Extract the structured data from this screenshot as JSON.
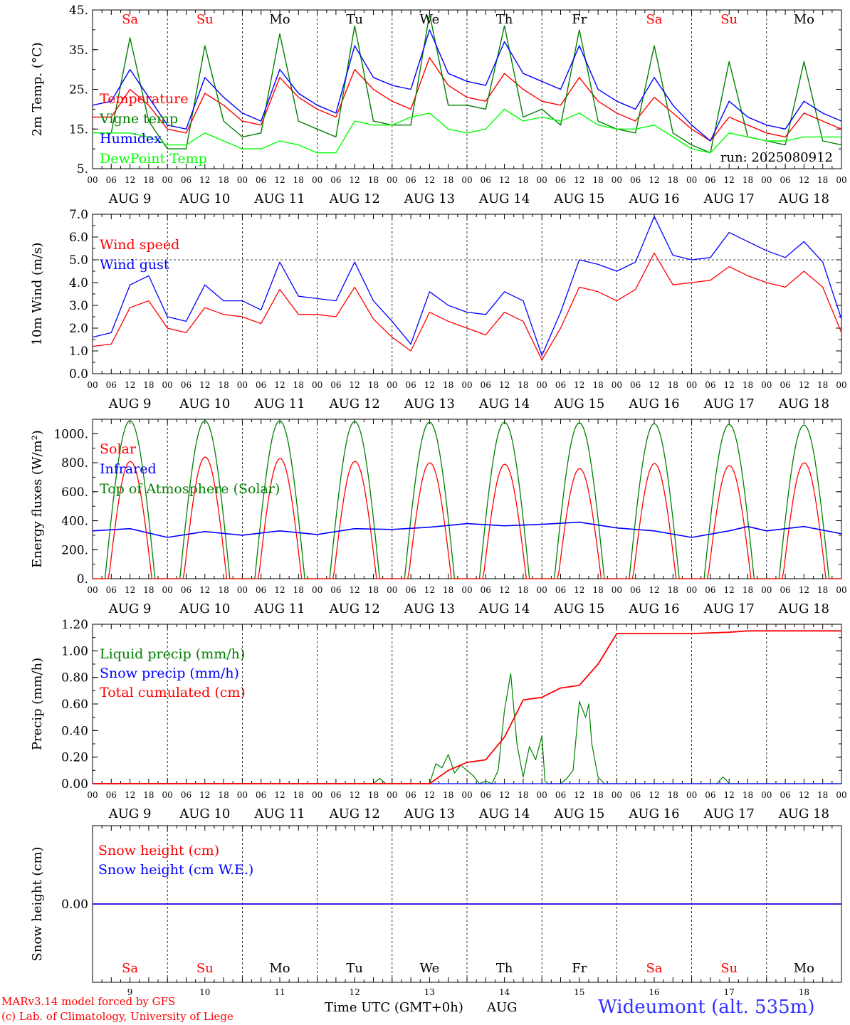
{
  "footer": {
    "model_line": "MARv3.14 model forced by GFS",
    "copyright_line": "(c) Lab. of Climatology, University of Liege",
    "axis_title": "Time UTC (GMT+0h)",
    "month": "AUG",
    "station": "Wideumont (alt. 535m)"
  },
  "colors": {
    "red": "#ff0000",
    "green": "#008000",
    "blue": "#0000ff",
    "lime": "#00ff00",
    "weekend": "#ff0000",
    "weekday": "#000000"
  },
  "chart_data": [
    {
      "type": "line",
      "id": "temp",
      "ylabel": "2m Temp. (°C)",
      "ylim": [
        5,
        45
      ],
      "yticks": [
        5,
        15,
        25,
        35,
        45
      ],
      "ytick_labels": [
        "5.",
        "15.",
        "25.",
        "35.",
        "45."
      ],
      "grid": "vertical dashed at 00 UTC",
      "legend": [
        "Temperature",
        "Vigne temp",
        "Humidex",
        "DewPoint Temp"
      ],
      "legend_placement": "left",
      "annotation": "run: 2025080912",
      "weekdays": [
        "Sa",
        "Su",
        "Mo",
        "Tu",
        "We",
        "Th",
        "Fr",
        "Sa",
        "Su",
        "Mo"
      ],
      "x_hours": [
        0,
        6,
        12,
        18,
        24,
        30,
        36,
        42,
        48,
        54,
        60,
        66,
        72,
        78,
        84,
        90,
        96,
        102,
        108,
        114,
        120,
        126,
        132,
        138,
        144,
        150,
        156,
        162,
        168,
        174,
        180,
        186,
        192,
        198,
        204,
        210,
        216,
        222,
        228,
        234,
        240
      ],
      "series": [
        {
          "name": "Temperature",
          "color": "red",
          "values": [
            18,
            18,
            25,
            21,
            15,
            14,
            24,
            21,
            17,
            16,
            28,
            23,
            20,
            18,
            30,
            25,
            22,
            20,
            33,
            26,
            23,
            22,
            29,
            25,
            22,
            21,
            28,
            22,
            19,
            17,
            23,
            19,
            15,
            12,
            18,
            16,
            14,
            13,
            19,
            17,
            15
          ]
        },
        {
          "name": "Vigne temp",
          "color": "green",
          "values": [
            14,
            14,
            38,
            17,
            10,
            10,
            36,
            17,
            13,
            14,
            39,
            17,
            15,
            13,
            41,
            17,
            16,
            16,
            44,
            21,
            21,
            20,
            41,
            18,
            20,
            16,
            40,
            17,
            15,
            14,
            36,
            14,
            11,
            9,
            32,
            13,
            12,
            11,
            32,
            12,
            11
          ]
        },
        {
          "name": "Humidex",
          "color": "blue",
          "values": [
            21,
            22,
            30,
            23,
            16,
            15,
            28,
            23,
            19,
            17,
            30,
            24,
            21,
            19,
            36,
            28,
            26,
            25,
            40,
            29,
            27,
            26,
            37,
            29,
            27,
            25,
            36,
            25,
            22,
            20,
            28,
            21,
            16,
            12,
            22,
            18,
            16,
            15,
            22,
            19,
            17
          ]
        },
        {
          "name": "DewPoint Temp",
          "color": "lime",
          "values": [
            14,
            14,
            14,
            13,
            11,
            11,
            14,
            12,
            10,
            10,
            12,
            11,
            9,
            9,
            17,
            16,
            16,
            18,
            19,
            15,
            14,
            15,
            20,
            17,
            18,
            17,
            19,
            16,
            15,
            15,
            16,
            13,
            10,
            9,
            14,
            13,
            12,
            12,
            13,
            13,
            13
          ]
        }
      ]
    },
    {
      "type": "line",
      "id": "wind",
      "ylabel": "10m Wind (m/s)",
      "ylim": [
        0,
        7
      ],
      "yticks": [
        0,
        1,
        2,
        3,
        4,
        5,
        6,
        7
      ],
      "ytick_labels": [
        "0.0",
        "1.0",
        "2.0",
        "3.0",
        "4.0",
        "5.0",
        "6.0",
        "7.0"
      ],
      "reference_line": 5,
      "legend": [
        "Wind speed",
        "Wind gust"
      ],
      "legend_placement": "left",
      "x_hours": [
        0,
        6,
        12,
        18,
        24,
        30,
        36,
        42,
        48,
        54,
        60,
        66,
        72,
        78,
        84,
        90,
        96,
        102,
        108,
        114,
        120,
        126,
        132,
        138,
        144,
        150,
        156,
        162,
        168,
        174,
        180,
        186,
        192,
        198,
        204,
        210,
        216,
        222,
        228,
        234,
        240
      ],
      "series": [
        {
          "name": "Wind speed",
          "color": "red",
          "values": [
            1.2,
            1.3,
            2.9,
            3.2,
            2.0,
            1.8,
            2.9,
            2.6,
            2.5,
            2.2,
            3.7,
            2.6,
            2.6,
            2.5,
            3.8,
            2.4,
            1.6,
            1.0,
            2.7,
            2.3,
            2.0,
            1.7,
            2.7,
            2.3,
            0.6,
            2.0,
            3.8,
            3.6,
            3.2,
            3.7,
            5.3,
            3.9,
            4.0,
            4.1,
            4.7,
            4.3,
            4.0,
            3.8,
            4.5,
            3.8,
            1.8
          ]
        },
        {
          "name": "Wind gust",
          "color": "blue",
          "values": [
            1.6,
            1.8,
            3.9,
            4.3,
            2.5,
            2.3,
            3.9,
            3.2,
            3.2,
            2.8,
            4.9,
            3.4,
            3.3,
            3.2,
            4.9,
            3.2,
            2.3,
            1.3,
            3.6,
            3.0,
            2.7,
            2.6,
            3.6,
            3.2,
            0.8,
            2.7,
            5.0,
            4.8,
            4.5,
            4.9,
            6.9,
            5.2,
            5.0,
            5.1,
            6.2,
            5.8,
            5.4,
            5.1,
            5.8,
            4.9,
            2.4
          ]
        }
      ]
    },
    {
      "type": "line",
      "id": "energy",
      "ylabel": "Energy fluxes (W/m²)",
      "ylim": [
        0,
        1100
      ],
      "yticks": [
        0,
        200,
        400,
        600,
        800,
        1000
      ],
      "ytick_labels": [
        "0.",
        "200.",
        "400.",
        "600.",
        "800.",
        "1000."
      ],
      "legend": [
        "Solar",
        "Infrared",
        "Top of Atmosphere (Solar)"
      ],
      "legend_placement": "left",
      "daily_peaks_solar": [
        810,
        840,
        830,
        810,
        800,
        790,
        760,
        795,
        780,
        800
      ],
      "daily_peaks_toa": [
        1090,
        1090,
        1090,
        1085,
        1080,
        1080,
        1075,
        1070,
        1065,
        1060
      ],
      "series": [
        {
          "name": "Solar",
          "color": "red",
          "description": "daily bell from ~05 to ~19 UTC"
        },
        {
          "name": "Infrared",
          "color": "blue",
          "x_hours": [
            0,
            12,
            24,
            36,
            48,
            60,
            72,
            84,
            96,
            108,
            120,
            132,
            144,
            156,
            168,
            180,
            192,
            204,
            210,
            216,
            228,
            240
          ],
          "values": [
            330,
            345,
            285,
            325,
            300,
            330,
            305,
            345,
            340,
            355,
            380,
            365,
            375,
            390,
            350,
            330,
            285,
            330,
            360,
            330,
            360,
            310
          ]
        },
        {
          "name": "Top of Atmosphere (Solar)",
          "color": "green",
          "description": "daily bell from ~04 to ~20 UTC"
        }
      ]
    },
    {
      "type": "line",
      "id": "precip",
      "ylabel": "Precip (mm/h)",
      "ylim": [
        0,
        1.2
      ],
      "yticks": [
        0,
        0.2,
        0.4,
        0.6,
        0.8,
        1.0,
        1.2
      ],
      "ytick_labels": [
        "0.00",
        "0.20",
        "0.40",
        "0.60",
        "0.80",
        "1.00",
        "1.20"
      ],
      "legend": [
        "Liquid precip (mm/h)",
        "Snow precip (mm/h)",
        "Total cumulated (cm)"
      ],
      "legend_placement": "left",
      "series": [
        {
          "name": "Liquid precip (mm/h)",
          "color": "green",
          "x_hours": [
            0,
            90,
            92,
            94,
            108,
            110,
            112,
            114,
            116,
            118,
            120,
            122,
            124,
            126,
            128,
            130,
            132,
            134,
            136,
            138,
            140,
            142,
            144,
            145,
            146,
            148,
            150,
            152,
            154,
            156,
            158,
            159,
            160,
            162,
            164,
            166,
            168,
            200,
            202,
            203,
            204,
            206,
            240
          ],
          "values": [
            0,
            0,
            0.04,
            0,
            0,
            0.15,
            0.12,
            0.22,
            0.08,
            0.14,
            0.1,
            0.06,
            0,
            0.02,
            0,
            0.1,
            0.55,
            0.83,
            0.3,
            0.05,
            0.28,
            0.18,
            0.36,
            0.02,
            0,
            0,
            0,
            0.04,
            0.1,
            0.62,
            0.5,
            0.6,
            0.3,
            0.05,
            0,
            0,
            0,
            0,
            0.05,
            0.03,
            0,
            0,
            0
          ]
        },
        {
          "name": "Snow precip (mm/h)",
          "color": "blue",
          "x_hours": [
            0,
            240
          ],
          "values": [
            0,
            0
          ]
        },
        {
          "name": "Total cumulated (cm)",
          "color": "red",
          "x_hours": [
            0,
            96,
            108,
            114,
            120,
            126,
            132,
            138,
            144,
            150,
            156,
            162,
            168,
            174,
            180,
            192,
            204,
            210,
            216,
            228,
            240
          ],
          "values": [
            0,
            0,
            0,
            0.1,
            0.16,
            0.18,
            0.35,
            0.63,
            0.65,
            0.72,
            0.74,
            0.9,
            1.13,
            1.13,
            1.13,
            1.13,
            1.14,
            1.15,
            1.15,
            1.15,
            1.15
          ]
        }
      ]
    },
    {
      "type": "line",
      "id": "snow",
      "ylabel": "Snow height (cm)",
      "ylim": [
        -1,
        1
      ],
      "yticks": [
        0
      ],
      "ytick_labels": [
        "0.00"
      ],
      "legend": [
        "Snow height (cm)",
        "Snow height (cm W.E.)"
      ],
      "legend_placement": "top-left",
      "day_numbers": [
        "9",
        "10",
        "11",
        "12",
        "13",
        "14",
        "15",
        "16",
        "17",
        "18"
      ],
      "weekdays": [
        "Sa",
        "Su",
        "Mo",
        "Tu",
        "We",
        "Th",
        "Fr",
        "Sa",
        "Su",
        "Mo"
      ],
      "series": [
        {
          "name": "Snow height (cm)",
          "color": "red",
          "x_hours": [
            0,
            240
          ],
          "values": [
            0,
            0
          ]
        },
        {
          "name": "Snow height (cm W.E.)",
          "color": "blue",
          "x_hours": [
            0,
            240
          ],
          "values": [
            0,
            0
          ]
        }
      ]
    }
  ],
  "x_axis": {
    "hour_labels": [
      "00",
      "06",
      "12",
      "18"
    ],
    "date_labels": [
      "AUG  9",
      "AUG 10",
      "AUG 11",
      "AUG 12",
      "AUG 13",
      "AUG 14",
      "AUG 15",
      "AUG 16",
      "AUG 17",
      "AUG 18"
    ]
  }
}
